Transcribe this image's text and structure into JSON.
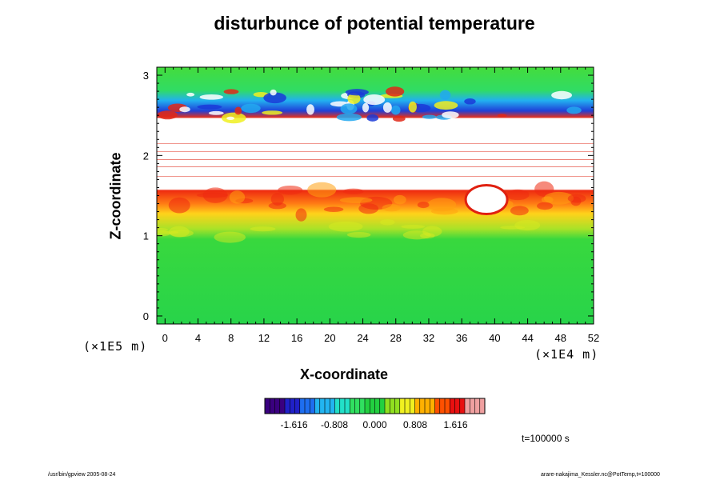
{
  "chart_data": {
    "type": "heatmap",
    "title": "disturbunce of potential temperature",
    "xlabel": "X-coordinate",
    "ylabel": "Z-coordinate",
    "x_unit": "(×1E4 m)",
    "y_unit": "(×1E5 m)",
    "xlim": [
      -1,
      52
    ],
    "ylim": [
      -0.1,
      3.1
    ],
    "x_ticks": [
      0,
      4,
      8,
      12,
      16,
      20,
      24,
      28,
      32,
      36,
      40,
      44,
      48,
      52
    ],
    "y_ticks": [
      0,
      1,
      2,
      3
    ],
    "colorbar": {
      "ticks": [
        -1.616,
        -0.808,
        0.0,
        0.808,
        1.616
      ],
      "tick_labels": [
        "-1.616",
        "-0.808",
        "0.000",
        "0.808",
        "1.616"
      ],
      "range": [
        -2.2,
        2.2
      ],
      "colors": [
        "#3a0080",
        "#2020c8",
        "#1e6ef0",
        "#22b4f0",
        "#22e0c8",
        "#30e060",
        "#22d040",
        "#90e020",
        "#f0f020",
        "#ffb000",
        "#ff5000",
        "#e81010",
        "#f0a0a0"
      ]
    },
    "regions": [
      {
        "z_range": [
          -0.1,
          0.95
        ],
        "description": "near-zero disturbance",
        "value": 0.0
      },
      {
        "z_range": [
          0.95,
          1.2
        ],
        "description": "weak positive",
        "value": 0.7
      },
      {
        "z_range": [
          1.2,
          1.6
        ],
        "description": "strong positive",
        "value": 1.6
      },
      {
        "z_range": [
          1.6,
          2.45
        ],
        "description": "out of range (white)",
        "value": null
      },
      {
        "z_range": [
          2.45,
          2.8
        ],
        "description": "mixed negative/positive",
        "value": -0.6
      },
      {
        "z_range": [
          2.8,
          3.1
        ],
        "description": "near-zero disturbance",
        "value": 0.0
      }
    ],
    "annotation": "t=100000 s"
  },
  "footer": {
    "left": "/usr/bin/gpview 2005-08-24",
    "right": "arare-nakajima_Kessler.nc@PotTemp,t=100000"
  }
}
